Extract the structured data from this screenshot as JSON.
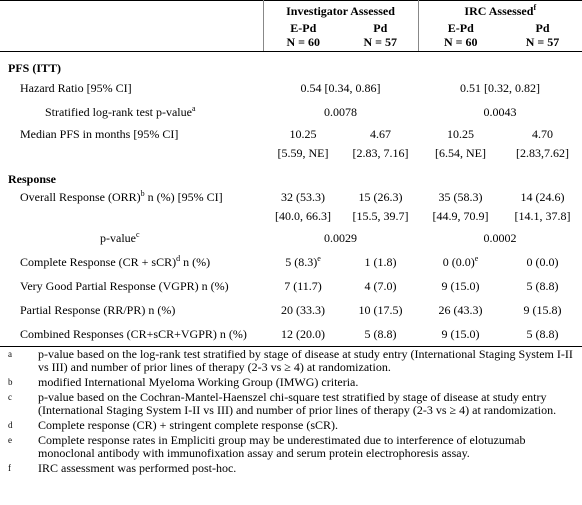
{
  "header": {
    "groups": [
      {
        "label": "Investigator Assessed"
      },
      {
        "label": "IRC Assessed",
        "sup": "f"
      }
    ],
    "columns": [
      {
        "arm": "E-Pd",
        "n": "N = 60"
      },
      {
        "arm": "Pd",
        "n": "N = 57"
      },
      {
        "arm": "E-Pd",
        "n": "N = 60"
      },
      {
        "arm": "Pd",
        "n": "N = 57"
      }
    ]
  },
  "sections": [
    {
      "title": "PFS (ITT)",
      "rows": [
        {
          "label": [
            "Hazard Ratio [95% CI]"
          ],
          "span": true,
          "cells": [
            {
              "text": "0.54 [0.34, 0.86]"
            },
            {
              "text": "0.51 [0.32, 0.82]"
            }
          ]
        },
        {
          "label": [
            "Stratified log-rank test p-value",
            "a"
          ],
          "span": true,
          "cells": [
            {
              "text": "0.0078"
            },
            {
              "text": "0.0043"
            }
          ]
        },
        {
          "label": [
            "Median PFS in months [95% CI]"
          ],
          "cells": [
            {
              "text": "10.25",
              "ci": "[5.59, NE]"
            },
            {
              "text": "4.67",
              "ci": "[2.83, 7.16]"
            },
            {
              "text": "10.25",
              "ci": "[6.54, NE]"
            },
            {
              "text": "4.70",
              "ci": "[2.83,7.62]"
            }
          ]
        }
      ]
    },
    {
      "title": "Response",
      "rows": [
        {
          "label": [
            "Overall Response (ORR)",
            "b",
            " n (%) [95% CI]"
          ],
          "cells": [
            {
              "text": "32 (53.3)",
              "ci": "[40.0, 66.3]"
            },
            {
              "text": "15 (26.3)",
              "ci": "[15.5, 39.7]"
            },
            {
              "text": "35 (58.3)",
              "ci": "[44.9, 70.9]"
            },
            {
              "text": "14 (24.6)",
              "ci": "[14.1, 37.8]"
            }
          ]
        },
        {
          "label": [
            "p-value",
            "c"
          ],
          "span": true,
          "cells": [
            {
              "text": "0.0029"
            },
            {
              "text": "0.0002"
            }
          ]
        },
        {
          "label": [
            "Complete Response (CR + sCR)",
            "d",
            " n (%)"
          ],
          "cells": [
            {
              "text": "5 (8.3)",
              "sup": "e"
            },
            {
              "text": "1 (1.8)"
            },
            {
              "text": "0 (0.0)",
              "sup": "e"
            },
            {
              "text": "0 (0.0)"
            }
          ]
        },
        {
          "label": [
            "Very Good Partial Response (VGPR) n (%)"
          ],
          "cells": [
            {
              "text": "7 (11.7)"
            },
            {
              "text": "4 (7.0)"
            },
            {
              "text": "9 (15.0)"
            },
            {
              "text": "5 (8.8)"
            }
          ]
        },
        {
          "label": [
            "Partial Response (RR/PR) n (%)"
          ],
          "cells": [
            {
              "text": "20 (33.3)"
            },
            {
              "text": "10 (17.5)"
            },
            {
              "text": "26 (43.3)"
            },
            {
              "text": "9 (15.8)"
            }
          ]
        },
        {
          "label": [
            "Combined Responses (CR+sCR+VGPR) n (%)"
          ],
          "cells": [
            {
              "text": "12 (20.0)"
            },
            {
              "text": "5 (8.8)"
            },
            {
              "text": "9 (15.0)"
            },
            {
              "text": "5 (8.8)"
            }
          ]
        }
      ]
    }
  ],
  "footnotes": [
    {
      "mark": "a",
      "text": "p-value based on the log-rank test stratified by stage of disease at study entry (International Staging System I-II vs III) and number of prior lines of therapy (2-3 vs ≥ 4) at randomization."
    },
    {
      "mark": "b",
      "text": "modified International Myeloma Working Group (IMWG) criteria."
    },
    {
      "mark": "c",
      "text": "p-value based on the Cochran-Mantel-Haenszel chi-square test stratified by stage of disease at study entry (International Staging System I-II vs III) and number of prior lines of therapy (2-3 vs ≥ 4) at randomization."
    },
    {
      "mark": "d",
      "text": "Complete response (CR) + stringent complete response (sCR)."
    },
    {
      "mark": "e",
      "text": "Complete response rates in Empliciti group may be underestimated due to interference of elotuzumab monoclonal antibody with immunofixation assay and serum protein electrophoresis assay."
    },
    {
      "mark": "f",
      "text": "IRC assessment was performed post-hoc."
    }
  ]
}
